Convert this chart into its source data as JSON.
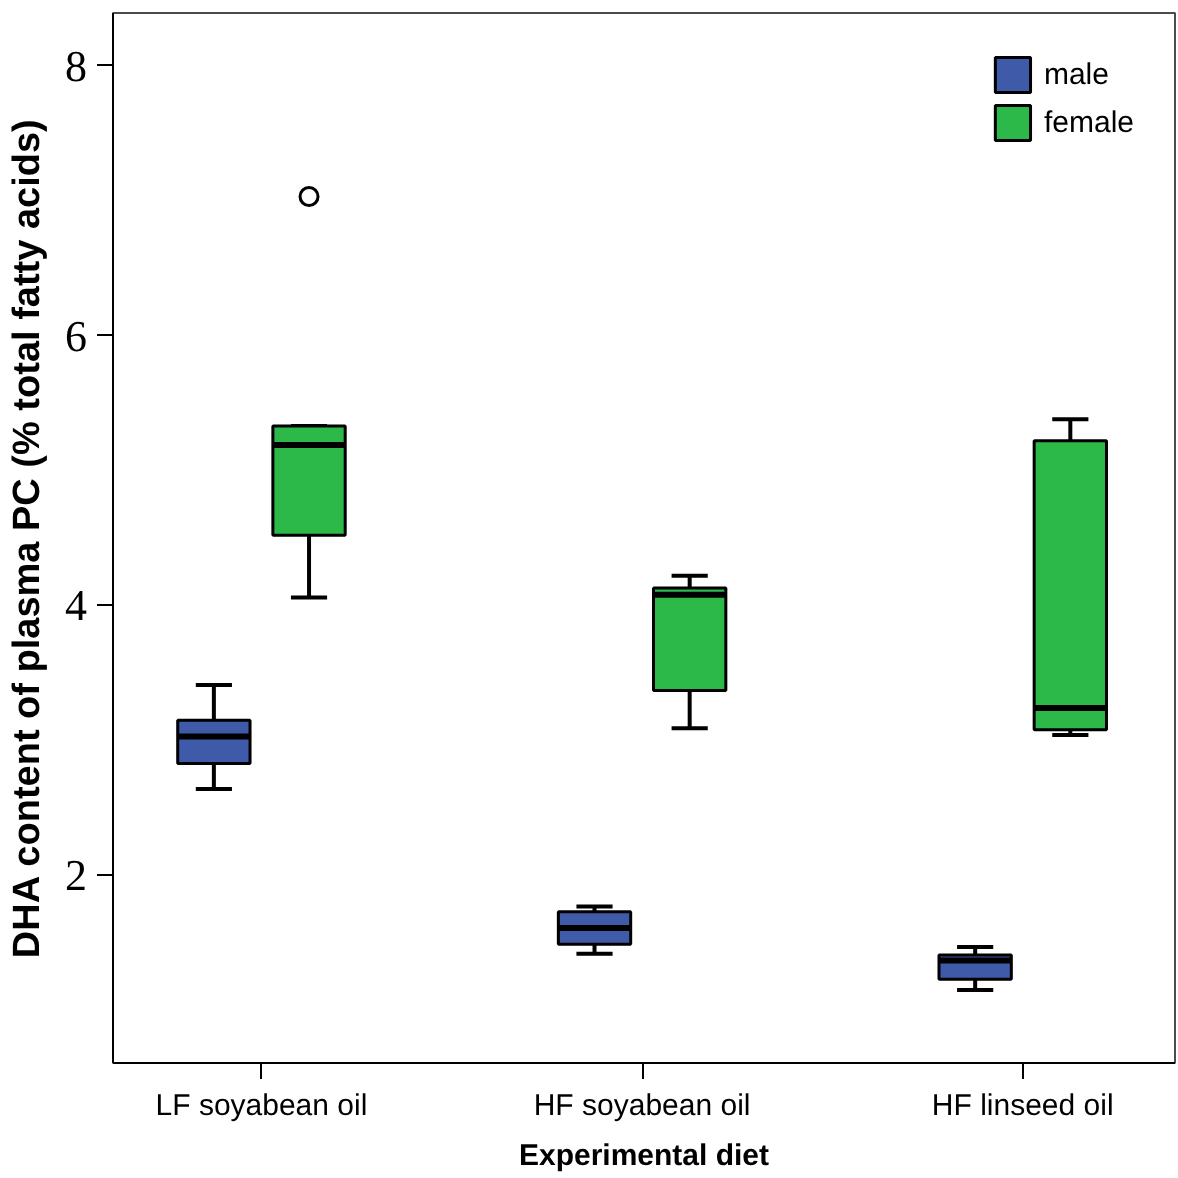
{
  "chart_data": {
    "type": "box",
    "xlabel": "Experimental diet",
    "ylabel": "DHA content of plasma PC (% total fatty acids)",
    "categories": [
      "LF soyabean oil",
      "HF soyabean oil",
      "HF linseed oil"
    ],
    "ylim": [
      0.61,
      8.39
    ],
    "yticks": [
      2,
      4,
      6,
      8
    ],
    "grid": false,
    "legend": "top right",
    "series": [
      {
        "name": "male",
        "color": "#3f5aa8",
        "boxes": [
          {
            "low": 2.64,
            "q1": 2.83,
            "median": 3.03,
            "q3": 3.15,
            "high": 3.41
          },
          {
            "low": 1.42,
            "q1": 1.49,
            "median": 1.61,
            "q3": 1.73,
            "high": 1.77
          },
          {
            "low": 1.15,
            "q1": 1.23,
            "median": 1.37,
            "q3": 1.41,
            "high": 1.47
          }
        ]
      },
      {
        "name": "female",
        "color": "#2db84a",
        "boxes": [
          {
            "low": 4.06,
            "q1": 4.52,
            "median": 5.19,
            "q3": 5.33,
            "high": 5.33,
            "outliers": [
              7.03
            ]
          },
          {
            "low": 3.09,
            "q1": 3.37,
            "median": 4.08,
            "q3": 4.13,
            "high": 4.22
          },
          {
            "low": 3.04,
            "q1": 3.08,
            "median": 3.24,
            "q3": 5.22,
            "high": 5.38
          }
        ]
      }
    ]
  }
}
